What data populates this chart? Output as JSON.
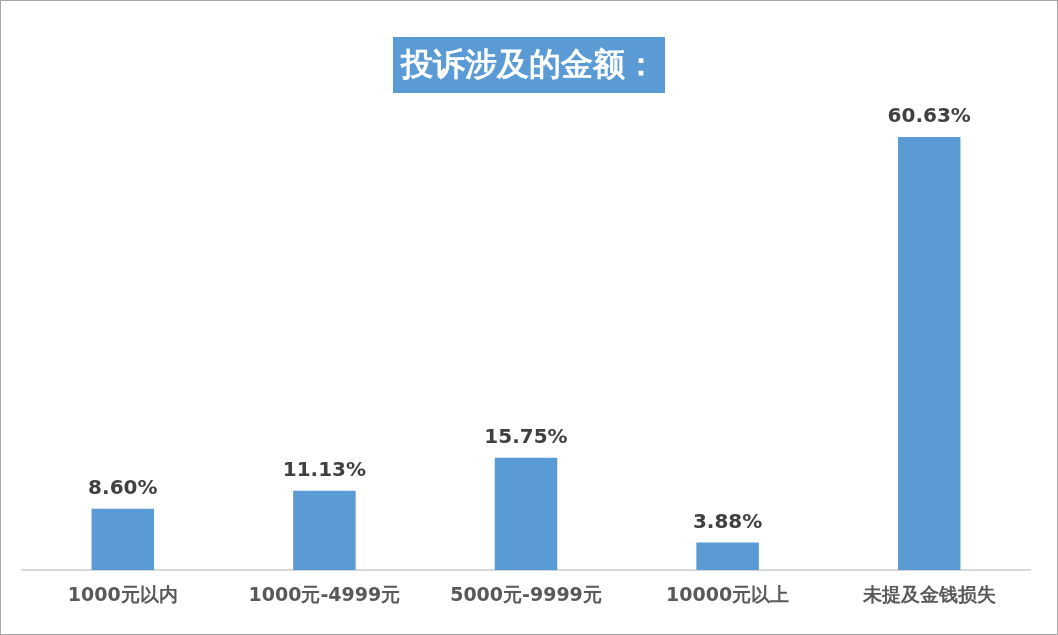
{
  "chart_data": {
    "type": "bar",
    "title": "投诉涉及的金额：",
    "categories": [
      "1000元以内",
      "1000元-4999元",
      "5000元-9999元",
      "10000元以上",
      "未提及金钱损失"
    ],
    "values": [
      8.6,
      11.13,
      15.75,
      3.88,
      60.63
    ],
    "value_labels": [
      "8.60%",
      "11.13%",
      "15.75%",
      "3.88%",
      "60.63%"
    ],
    "color": "#5b9bd5",
    "grid": false,
    "legend": false,
    "tick_labels": "x"
  }
}
